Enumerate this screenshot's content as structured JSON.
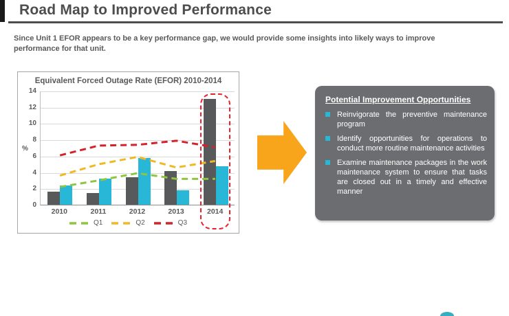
{
  "slide": {
    "title": "Road Map to Improved Performance",
    "subtitle": "Since Unit 1 EFOR appears to be a key performance gap, we would provide some insights into likely ways to improve performance for that unit."
  },
  "chart_data": {
    "type": "bar",
    "title": "Equivalent Forced Outage Rate (EFOR) 2010-2014",
    "ylabel": "%",
    "xlabel": "",
    "categories": [
      "2010",
      "2011",
      "2012",
      "2013",
      "2014"
    ],
    "ylim": [
      0,
      14
    ],
    "ytick_step": 2,
    "grid": true,
    "legend_position": "bottom",
    "bar_series": [
      {
        "label": "",
        "color": "#58595b",
        "values": [
          1.6,
          1.4,
          3.4,
          4.1,
          13.0
        ]
      },
      {
        "label": "",
        "color": "#29b7d7",
        "values": [
          2.4,
          3.2,
          5.7,
          1.8,
          4.7
        ]
      }
    ],
    "line_series": [
      {
        "label": "Q1",
        "color": "#8dc63f",
        "values": [
          2.2,
          3.0,
          3.9,
          3.2,
          3.2
        ]
      },
      {
        "label": "Q2",
        "color": "#f0b823",
        "values": [
          3.6,
          5.0,
          5.9,
          4.6,
          5.4
        ]
      },
      {
        "label": "Q3",
        "color": "#d3222a",
        "values": [
          6.1,
          7.3,
          7.4,
          7.9,
          7.1
        ]
      }
    ],
    "highlight": {
      "category": "2014",
      "style": "red dashed outline around 2014 bars"
    }
  },
  "panel": {
    "title": "Potential Improvement Opportunities",
    "bullets": [
      "Reinvigorate the preventive maintenance program",
      "Identify opportunities for operations to conduct more routine maintenance activities",
      "Examine maintenance packages in the work maintenance system to ensure that tasks are closed out in a timely and effective manner"
    ],
    "bg_color": "#6c6d70",
    "bullet_color": "#29b7d7"
  },
  "arrow": {
    "direction": "right",
    "color": "#f9a51b"
  },
  "colors": {
    "title_gray": "#4d4d4d",
    "text_gray": "#595959",
    "highlight_red": "#e8212d",
    "logo_teal": "#35aec2"
  }
}
